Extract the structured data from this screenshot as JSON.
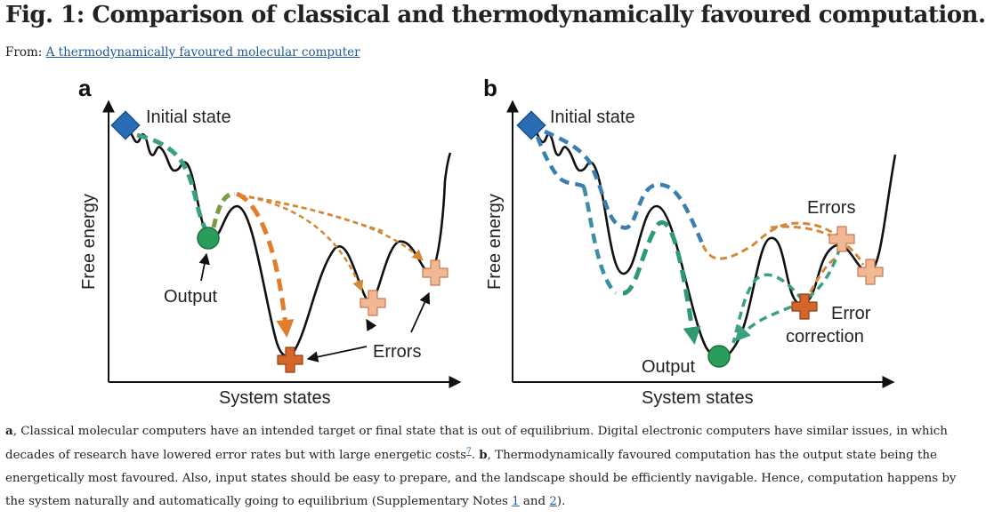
{
  "figure": {
    "title": "Fig. 1: Comparison of classical and thermodynamically favoured computation.",
    "from_label": "From:",
    "from_link": "A thermodynamically favoured molecular computer"
  },
  "panel_a": {
    "label": "a",
    "initial_state": "Initial state",
    "output": "Output",
    "errors": "Errors",
    "y_axis": "Free energy",
    "x_axis": "System states"
  },
  "panel_b": {
    "label": "b",
    "initial_state": "Initial state",
    "errors": "Errors",
    "error_correction_line1": "Error",
    "error_correction_line2": "correction",
    "output": "Output",
    "y_axis": "Free energy",
    "x_axis": "System states"
  },
  "caption": {
    "a_label": "a",
    "text1": ", Classical molecular computers have an intended target or final state that is out of equilibrium. Digital electronic computers have similar issues, in which decades of research have lowered error rates but with large energetic costs",
    "ref7": "7",
    "sep": ". ",
    "b_label": "b",
    "text2": ", Thermodynamically favoured computation has the output state being the energetically most favoured. Also, input states should be easy to prepare, and the landscape should be efficiently navigable. Hence, computation happens by the system naturally and automatically going to equilibrium (Supplementary Notes ",
    "note1": "1",
    "and": " and ",
    "note2": "2",
    "end": ")."
  },
  "colors": {
    "initial_state": "#2a6db5",
    "output": "#2a9d5c",
    "error_dark": "#d4662a",
    "error_light": "#f2b896",
    "path_teal": "#3aa082",
    "path_blue": "#3a7fb0",
    "path_orange": "#d4893a"
  }
}
